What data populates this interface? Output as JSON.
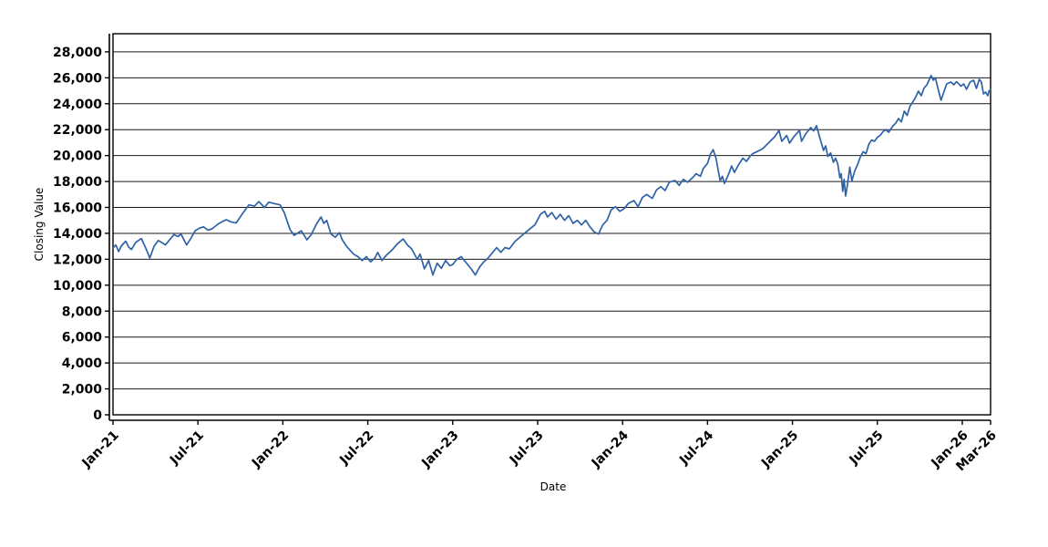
{
  "chart_data": {
    "type": "line",
    "title": "",
    "xlabel": "Date",
    "ylabel": "Closing Value",
    "x_unit": "months since Jan-2021",
    "x_range": [
      0,
      62
    ],
    "ylim": [
      0,
      29400
    ],
    "grid": "horizontal only, every 2000",
    "legend": "none",
    "y_ticks": [
      {
        "v": 0,
        "label": "0"
      },
      {
        "v": 2000,
        "label": "2,000"
      },
      {
        "v": 4000,
        "label": "4,000"
      },
      {
        "v": 6000,
        "label": "6,000"
      },
      {
        "v": 8000,
        "label": "8,000"
      },
      {
        "v": 10000,
        "label": "10,000"
      },
      {
        "v": 12000,
        "label": "12,000"
      },
      {
        "v": 14000,
        "label": "14,000"
      },
      {
        "v": 16000,
        "label": "16,000"
      },
      {
        "v": 18000,
        "label": "18,000"
      },
      {
        "v": 20000,
        "label": "20,000"
      },
      {
        "v": 22000,
        "label": "22,000"
      },
      {
        "v": 24000,
        "label": "24,000"
      },
      {
        "v": 26000,
        "label": "26,000"
      },
      {
        "v": 28000,
        "label": "28,000"
      }
    ],
    "x_ticks": [
      {
        "m": 0,
        "label": "Jan-21"
      },
      {
        "m": 6,
        "label": "Jul-21"
      },
      {
        "m": 12,
        "label": "Jan-22"
      },
      {
        "m": 18,
        "label": "Jul-22"
      },
      {
        "m": 24,
        "label": "Jan-23"
      },
      {
        "m": 30,
        "label": "Jul-23"
      },
      {
        "m": 36,
        "label": "Jan-24"
      },
      {
        "m": 42,
        "label": "Jul-24"
      },
      {
        "m": 48,
        "label": "Jan-25"
      },
      {
        "m": 54,
        "label": "Jul-25"
      },
      {
        "m": 60,
        "label": "Jan-26"
      },
      {
        "m": 62,
        "label": "Mar-26"
      }
    ],
    "series": [
      {
        "name": "Closing Value",
        "color": "#2e62a7",
        "points": [
          [
            0.0,
            12870
          ],
          [
            0.2,
            13100
          ],
          [
            0.4,
            12600
          ],
          [
            0.6,
            13050
          ],
          [
            0.9,
            13400
          ],
          [
            1.1,
            12950
          ],
          [
            1.3,
            12750
          ],
          [
            1.6,
            13300
          ],
          [
            2.0,
            13600
          ],
          [
            2.3,
            12900
          ],
          [
            2.6,
            12100
          ],
          [
            2.9,
            13000
          ],
          [
            3.2,
            13450
          ],
          [
            3.5,
            13250
          ],
          [
            3.7,
            13100
          ],
          [
            4.0,
            13500
          ],
          [
            4.3,
            13900
          ],
          [
            4.6,
            13750
          ],
          [
            4.8,
            13950
          ],
          [
            5.2,
            13100
          ],
          [
            5.5,
            13600
          ],
          [
            5.8,
            14200
          ],
          [
            6.1,
            14400
          ],
          [
            6.4,
            14500
          ],
          [
            6.7,
            14250
          ],
          [
            7.0,
            14350
          ],
          [
            7.4,
            14700
          ],
          [
            7.7,
            14900
          ],
          [
            8.0,
            15050
          ],
          [
            8.3,
            14900
          ],
          [
            8.7,
            14800
          ],
          [
            9.2,
            15600
          ],
          [
            9.6,
            16200
          ],
          [
            10.0,
            16100
          ],
          [
            10.3,
            16450
          ],
          [
            10.7,
            16000
          ],
          [
            11.0,
            16400
          ],
          [
            11.4,
            16300
          ],
          [
            11.8,
            16200
          ],
          [
            12.1,
            15600
          ],
          [
            12.5,
            14300
          ],
          [
            12.8,
            13850
          ],
          [
            13.3,
            14200
          ],
          [
            13.7,
            13500
          ],
          [
            14.0,
            13900
          ],
          [
            14.4,
            14770
          ],
          [
            14.7,
            15260
          ],
          [
            14.9,
            14770
          ],
          [
            15.1,
            15000
          ],
          [
            15.4,
            13950
          ],
          [
            15.7,
            13700
          ],
          [
            16.0,
            14050
          ],
          [
            16.2,
            13500
          ],
          [
            16.5,
            13000
          ],
          [
            17.0,
            12400
          ],
          [
            17.3,
            12200
          ],
          [
            17.6,
            11900
          ],
          [
            17.9,
            12200
          ],
          [
            18.2,
            11800
          ],
          [
            18.5,
            12100
          ],
          [
            18.7,
            12530
          ],
          [
            19.0,
            11900
          ],
          [
            19.3,
            12300
          ],
          [
            19.7,
            12700
          ],
          [
            20.1,
            13200
          ],
          [
            20.5,
            13570
          ],
          [
            20.8,
            13100
          ],
          [
            21.1,
            12800
          ],
          [
            21.5,
            12000
          ],
          [
            21.7,
            12400
          ],
          [
            22.0,
            11260
          ],
          [
            22.3,
            11900
          ],
          [
            22.6,
            10790
          ],
          [
            22.9,
            11700
          ],
          [
            23.2,
            11300
          ],
          [
            23.5,
            11900
          ],
          [
            23.8,
            11500
          ],
          [
            24.0,
            11600
          ],
          [
            24.3,
            12000
          ],
          [
            24.6,
            12200
          ],
          [
            24.9,
            11800
          ],
          [
            25.3,
            11260
          ],
          [
            25.6,
            10790
          ],
          [
            25.9,
            11400
          ],
          [
            26.2,
            11800
          ],
          [
            26.5,
            12100
          ],
          [
            26.8,
            12500
          ],
          [
            27.1,
            12900
          ],
          [
            27.4,
            12540
          ],
          [
            27.7,
            12900
          ],
          [
            28.0,
            12800
          ],
          [
            28.4,
            13370
          ],
          [
            28.9,
            13850
          ],
          [
            29.4,
            14300
          ],
          [
            29.8,
            14650
          ],
          [
            30.2,
            15470
          ],
          [
            30.5,
            15700
          ],
          [
            30.7,
            15260
          ],
          [
            31.0,
            15600
          ],
          [
            31.3,
            15100
          ],
          [
            31.6,
            15470
          ],
          [
            31.9,
            15000
          ],
          [
            32.2,
            15370
          ],
          [
            32.5,
            14770
          ],
          [
            32.8,
            15000
          ],
          [
            33.1,
            14650
          ],
          [
            33.4,
            15000
          ],
          [
            33.7,
            14500
          ],
          [
            34.0,
            14100
          ],
          [
            34.3,
            13950
          ],
          [
            34.6,
            14650
          ],
          [
            34.9,
            15000
          ],
          [
            35.2,
            15820
          ],
          [
            35.5,
            16060
          ],
          [
            35.8,
            15700
          ],
          [
            36.1,
            15900
          ],
          [
            36.4,
            16300
          ],
          [
            36.8,
            16530
          ],
          [
            37.1,
            16060
          ],
          [
            37.4,
            16770
          ],
          [
            37.7,
            17000
          ],
          [
            38.1,
            16700
          ],
          [
            38.4,
            17350
          ],
          [
            38.7,
            17600
          ],
          [
            39.0,
            17300
          ],
          [
            39.3,
            17940
          ],
          [
            39.7,
            18080
          ],
          [
            40.0,
            17700
          ],
          [
            40.3,
            18170
          ],
          [
            40.6,
            17940
          ],
          [
            41.0,
            18350
          ],
          [
            41.2,
            18600
          ],
          [
            41.5,
            18400
          ],
          [
            41.7,
            19000
          ],
          [
            42.0,
            19400
          ],
          [
            42.2,
            20100
          ],
          [
            42.4,
            20450
          ],
          [
            42.6,
            19800
          ],
          [
            42.75,
            18900
          ],
          [
            42.9,
            18050
          ],
          [
            43.05,
            18400
          ],
          [
            43.2,
            17850
          ],
          [
            43.5,
            18600
          ],
          [
            43.7,
            19200
          ],
          [
            43.9,
            18700
          ],
          [
            44.2,
            19300
          ],
          [
            44.5,
            19800
          ],
          [
            44.75,
            19550
          ],
          [
            45.0,
            19950
          ],
          [
            45.2,
            20150
          ],
          [
            45.45,
            20280
          ],
          [
            45.9,
            20530
          ],
          [
            46.3,
            20960
          ],
          [
            46.75,
            21450
          ],
          [
            47.05,
            21940
          ],
          [
            47.25,
            21100
          ],
          [
            47.6,
            21550
          ],
          [
            47.8,
            20960
          ],
          [
            48.1,
            21450
          ],
          [
            48.5,
            21940
          ],
          [
            48.65,
            21100
          ],
          [
            48.95,
            21690
          ],
          [
            49.3,
            22160
          ],
          [
            49.5,
            21900
          ],
          [
            49.7,
            22300
          ],
          [
            49.9,
            21500
          ],
          [
            50.2,
            20400
          ],
          [
            50.35,
            20750
          ],
          [
            50.5,
            19930
          ],
          [
            50.7,
            20200
          ],
          [
            50.9,
            19480
          ],
          [
            51.05,
            19800
          ],
          [
            51.2,
            19350
          ],
          [
            51.35,
            18290
          ],
          [
            51.45,
            18600
          ],
          [
            51.55,
            17240
          ],
          [
            51.65,
            18170
          ],
          [
            51.76,
            16880
          ],
          [
            51.9,
            17820
          ],
          [
            52.05,
            19100
          ],
          [
            52.2,
            18050
          ],
          [
            52.4,
            18800
          ],
          [
            52.6,
            19300
          ],
          [
            52.8,
            19900
          ],
          [
            53.0,
            20300
          ],
          [
            53.2,
            20150
          ],
          [
            53.4,
            20880
          ],
          [
            53.6,
            21200
          ],
          [
            53.8,
            21100
          ],
          [
            54.0,
            21400
          ],
          [
            54.2,
            21550
          ],
          [
            54.4,
            21850
          ],
          [
            54.6,
            22000
          ],
          [
            54.8,
            21800
          ],
          [
            55.1,
            22290
          ],
          [
            55.3,
            22500
          ],
          [
            55.5,
            22860
          ],
          [
            55.7,
            22600
          ],
          [
            55.9,
            23430
          ],
          [
            56.1,
            23100
          ],
          [
            56.3,
            23800
          ],
          [
            56.5,
            24130
          ],
          [
            56.7,
            24500
          ],
          [
            56.9,
            24970
          ],
          [
            57.1,
            24620
          ],
          [
            57.3,
            25210
          ],
          [
            57.5,
            25460
          ],
          [
            57.8,
            26170
          ],
          [
            57.95,
            25810
          ],
          [
            58.1,
            26000
          ],
          [
            58.3,
            25110
          ],
          [
            58.5,
            24270
          ],
          [
            58.7,
            24900
          ],
          [
            58.9,
            25530
          ],
          [
            59.2,
            25670
          ],
          [
            59.4,
            25460
          ],
          [
            59.6,
            25700
          ],
          [
            59.9,
            25350
          ],
          [
            60.1,
            25530
          ],
          [
            60.3,
            25110
          ],
          [
            60.55,
            25670
          ],
          [
            60.8,
            25810
          ],
          [
            61.0,
            25180
          ],
          [
            61.2,
            25880
          ],
          [
            61.35,
            25670
          ],
          [
            61.5,
            24760
          ],
          [
            61.65,
            24900
          ],
          [
            61.8,
            24620
          ],
          [
            61.9,
            25000
          ],
          [
            62.0,
            25080
          ]
        ]
      }
    ]
  }
}
